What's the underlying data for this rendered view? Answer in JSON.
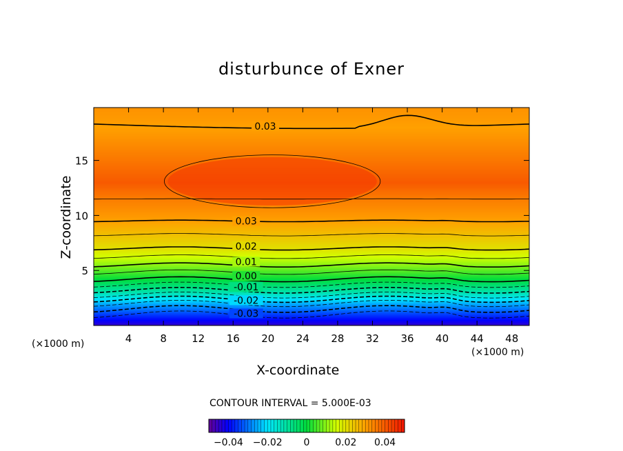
{
  "chart_data": {
    "type": "heatmap",
    "title": "disturbunce of Exner",
    "xlabel": "X-coordinate",
    "ylabel": "Z-coordinate",
    "x_unit_left": "(×1000 m)",
    "x_unit_right": "(×1000 m)",
    "xlim": [
      0,
      50
    ],
    "ylim": [
      0,
      19.8
    ],
    "x_ticks": [
      4,
      8,
      12,
      16,
      20,
      24,
      28,
      32,
      36,
      40,
      44,
      48
    ],
    "y_ticks": [
      5,
      10,
      15
    ],
    "contour_interval_label": "CONTOUR INTERVAL = 5.000E-03",
    "contour_levels": [
      -0.035,
      -0.03,
      -0.025,
      -0.02,
      -0.015,
      -0.01,
      -0.005,
      0.0,
      0.005,
      0.01,
      0.015,
      0.02,
      0.025,
      0.03,
      0.035
    ],
    "contour_labels": [
      {
        "text": "0.03",
        "x": 19.7,
        "z": 18.1
      },
      {
        "text": "0.03",
        "x": 17.5,
        "z": 9.5
      },
      {
        "text": "0.02",
        "x": 17.5,
        "z": 7.2
      },
      {
        "text": "0.01",
        "x": 17.5,
        "z": 5.8
      },
      {
        "text": "0.00",
        "x": 17.5,
        "z": 4.5
      },
      {
        "text": "-0.01",
        "x": 17.5,
        "z": 3.5
      },
      {
        "text": "-0.02",
        "x": 17.5,
        "z": 2.3
      },
      {
        "text": "-0.03",
        "x": 17.5,
        "z": 1.1
      }
    ],
    "field_profile": [
      {
        "z": 0.0,
        "value": -0.045
      },
      {
        "z": 1.0,
        "value": -0.035
      },
      {
        "z": 2.0,
        "value": -0.025
      },
      {
        "z": 3.0,
        "value": -0.012
      },
      {
        "z": 4.2,
        "value": 0.0
      },
      {
        "z": 5.5,
        "value": 0.01
      },
      {
        "z": 7.0,
        "value": 0.02
      },
      {
        "z": 9.5,
        "value": 0.03
      },
      {
        "z": 11.5,
        "value": 0.035
      },
      {
        "z": 13.0,
        "value": 0.04
      },
      {
        "z": 15.0,
        "value": 0.036
      },
      {
        "z": 18.0,
        "value": 0.03
      },
      {
        "z": 19.8,
        "value": 0.032
      }
    ],
    "colorbar": {
      "range": [
        -0.05,
        0.05
      ],
      "tick_values": [
        -0.04,
        -0.02,
        0,
        0.02,
        0.04
      ],
      "tick_labels": [
        "−0.04",
        "−0.02",
        "0",
        "0.02",
        "0.04"
      ]
    }
  }
}
